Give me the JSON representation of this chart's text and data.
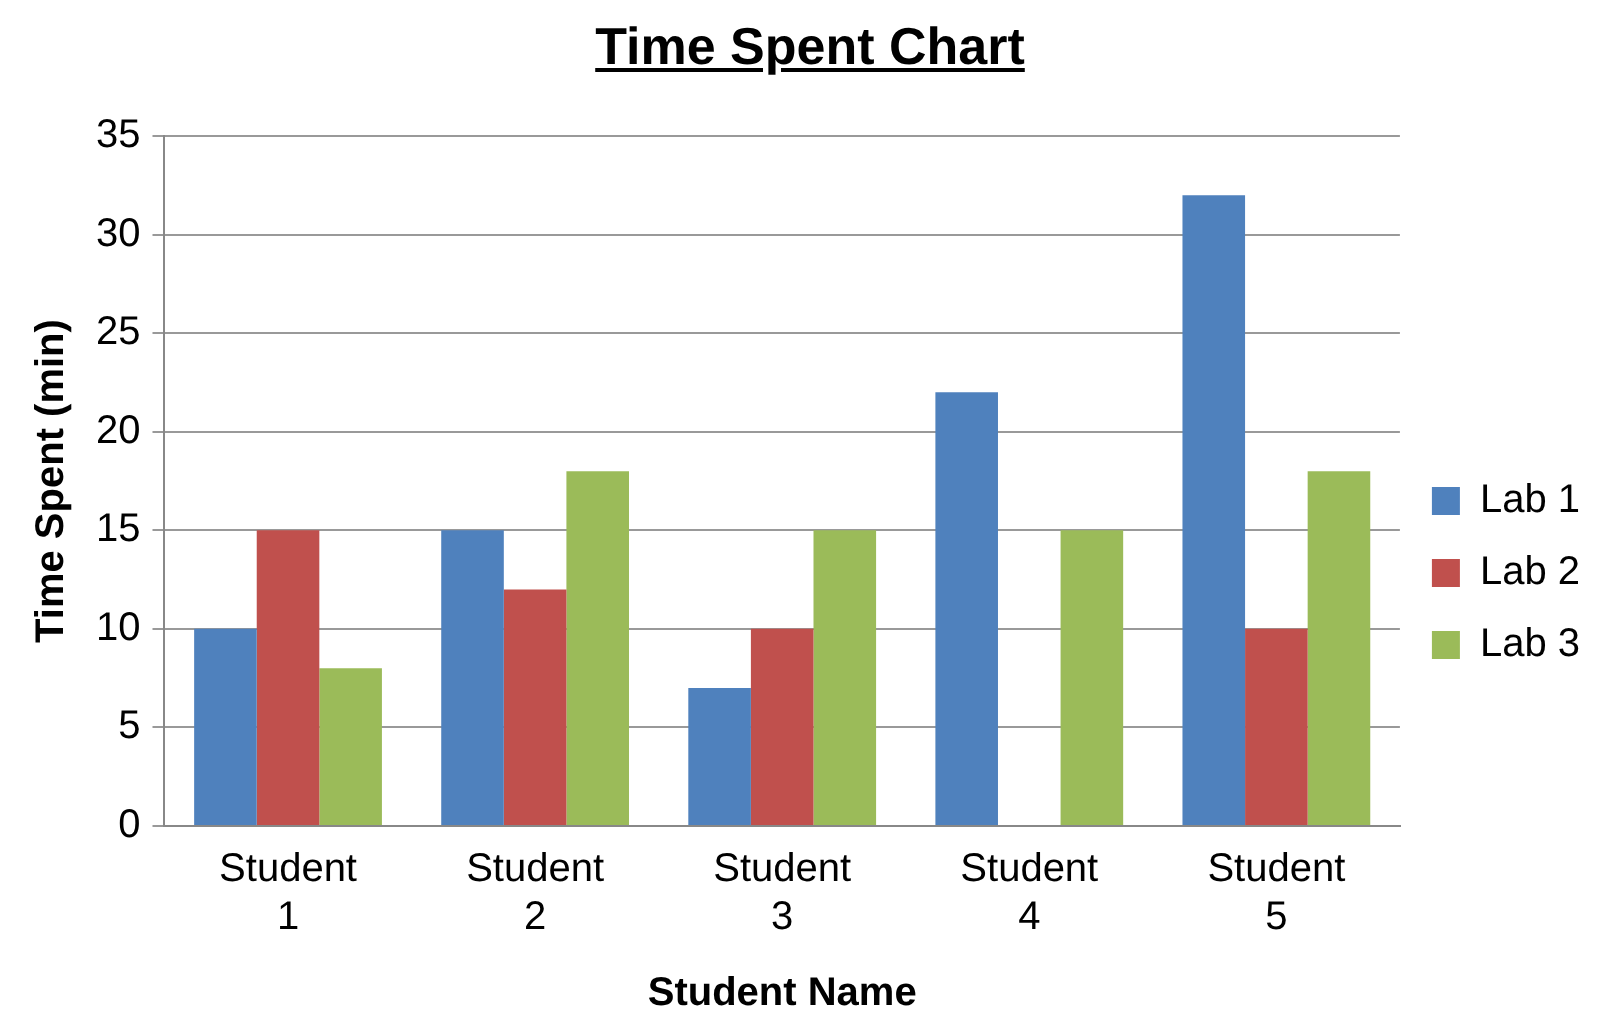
{
  "chart_data": {
    "type": "bar",
    "title": "Time Spent Chart",
    "xlabel": "Student Name",
    "ylabel": "Time Spent (min)",
    "categories": [
      "Student 1",
      "Student 2",
      "Student 3",
      "Student 4",
      "Student 5"
    ],
    "series": [
      {
        "name": "Lab 1",
        "color": "#4f81bd",
        "values": [
          10,
          15,
          7,
          22,
          32
        ]
      },
      {
        "name": "Lab 2",
        "color": "#c0504d",
        "values": [
          15,
          12,
          10,
          null,
          10
        ]
      },
      {
        "name": "Lab 3",
        "color": "#9bbb59",
        "values": [
          8,
          18,
          15,
          15,
          18
        ]
      }
    ],
    "ylim": [
      0,
      35
    ],
    "yticks": [
      0,
      5,
      10,
      15,
      20,
      25,
      30,
      35
    ],
    "grid": "y",
    "legend": "right"
  }
}
